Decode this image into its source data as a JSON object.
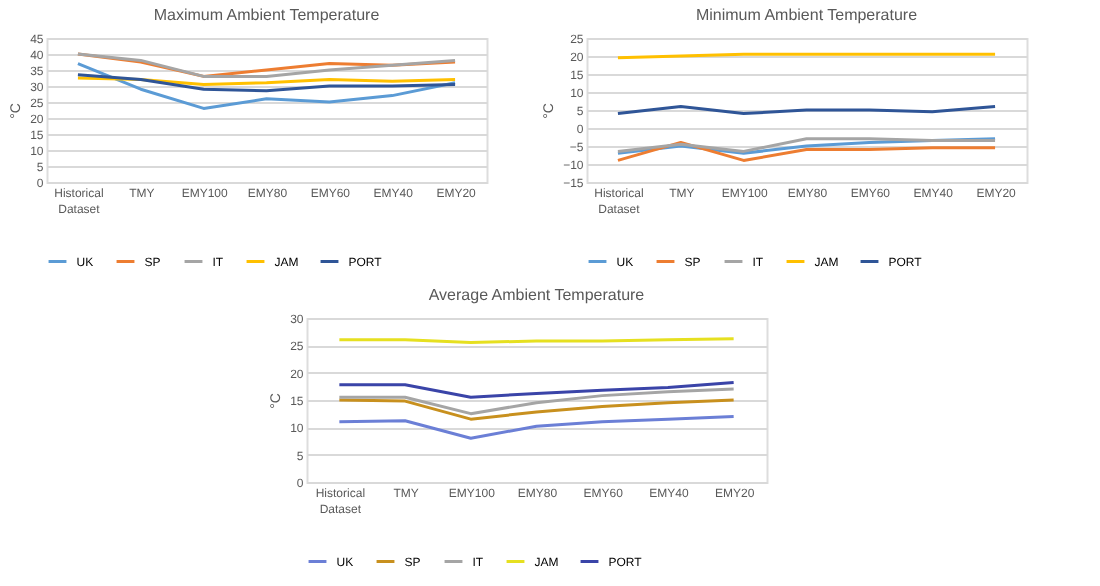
{
  "chart_data": [
    {
      "type": "line",
      "title": "Maximum Ambient Temperature",
      "ylabel": "°C",
      "categories": [
        "Historical Dataset",
        "TMY",
        "EMY100",
        "EMY80",
        "EMY60",
        "EMY40",
        "EMY20"
      ],
      "ylim": [
        0,
        45
      ],
      "yticks": [
        0,
        5,
        10,
        15,
        20,
        25,
        30,
        35,
        40,
        45
      ],
      "grid": "y",
      "legend": "bottom",
      "marker": "none",
      "line_style": "solid",
      "series": [
        {
          "name": "UK",
          "color": "#5b9bd5",
          "values": [
            37,
            29,
            23,
            26,
            25,
            27,
            31
          ]
        },
        {
          "name": "SP",
          "color": "#ed7d31",
          "values": [
            40,
            37.5,
            33,
            35,
            37,
            36.5,
            37.5
          ]
        },
        {
          "name": "IT",
          "color": "#a5a5a5",
          "values": [
            40,
            38,
            33,
            33,
            35,
            36.5,
            38
          ]
        },
        {
          "name": "JAM",
          "color": "#ffc000",
          "values": [
            32.5,
            32,
            30.5,
            31,
            32,
            31.5,
            32
          ]
        },
        {
          "name": "PORT",
          "color": "#2f5597",
          "values": [
            33.5,
            32,
            29,
            28.5,
            30,
            30,
            30.5
          ]
        }
      ]
    },
    {
      "type": "line",
      "title": "Minimum Ambient Temperature",
      "ylabel": "°C",
      "categories": [
        "Historical Dataset",
        "TMY",
        "EMY100",
        "EMY80",
        "EMY60",
        "EMY40",
        "EMY20"
      ],
      "ylim": [
        -15,
        25
      ],
      "yticks": [
        -15,
        -10,
        -5,
        0,
        5,
        10,
        15,
        20,
        25
      ],
      "grid": "y",
      "legend": "bottom",
      "marker": "none",
      "line_style": "solid",
      "series": [
        {
          "name": "UK",
          "color": "#5b9bd5",
          "values": [
            -7,
            -5,
            -7,
            -5,
            -4,
            -3.5,
            -3
          ]
        },
        {
          "name": "SP",
          "color": "#ed7d31",
          "values": [
            -9,
            -4,
            -9,
            -6,
            -6,
            -5.5,
            -5.5
          ]
        },
        {
          "name": "IT",
          "color": "#a5a5a5",
          "values": [
            -6.5,
            -4.5,
            -6.5,
            -3,
            -3,
            -3.5,
            -3.5
          ]
        },
        {
          "name": "JAM",
          "color": "#ffc000",
          "values": [
            19.5,
            20,
            20.5,
            20.5,
            20.5,
            20.5,
            20.5
          ]
        },
        {
          "name": "PORT",
          "color": "#2f5597",
          "values": [
            4,
            6,
            4,
            5,
            5,
            4.5,
            6
          ]
        }
      ]
    },
    {
      "type": "line",
      "title": "Average Ambient Temperature",
      "ylabel": "°C",
      "categories": [
        "Historical Dataset",
        "TMY",
        "EMY100",
        "EMY80",
        "EMY60",
        "EMY40",
        "EMY20"
      ],
      "ylim": [
        0,
        30
      ],
      "yticks": [
        0,
        5,
        10,
        15,
        20,
        25,
        30
      ],
      "grid": "y",
      "legend": "bottom",
      "marker": "none",
      "line_style": "solid",
      "series": [
        {
          "name": "UK",
          "color": "#6b7fd6",
          "values": [
            11,
            11.2,
            8,
            10.2,
            11,
            11.5,
            12
          ]
        },
        {
          "name": "SP",
          "color": "#c8901e",
          "values": [
            15,
            14.8,
            11.5,
            12.8,
            13.8,
            14.5,
            15
          ]
        },
        {
          "name": "IT",
          "color": "#a5a5a5",
          "values": [
            15.5,
            15.5,
            12.5,
            14.5,
            15.8,
            16.5,
            17
          ]
        },
        {
          "name": "JAM",
          "color": "#e6e020",
          "values": [
            26,
            26,
            25.5,
            25.8,
            25.8,
            26,
            26.2
          ]
        },
        {
          "name": "PORT",
          "color": "#3a44a8",
          "values": [
            17.8,
            17.8,
            15.5,
            16.2,
            16.8,
            17.3,
            18.2
          ]
        }
      ]
    }
  ]
}
